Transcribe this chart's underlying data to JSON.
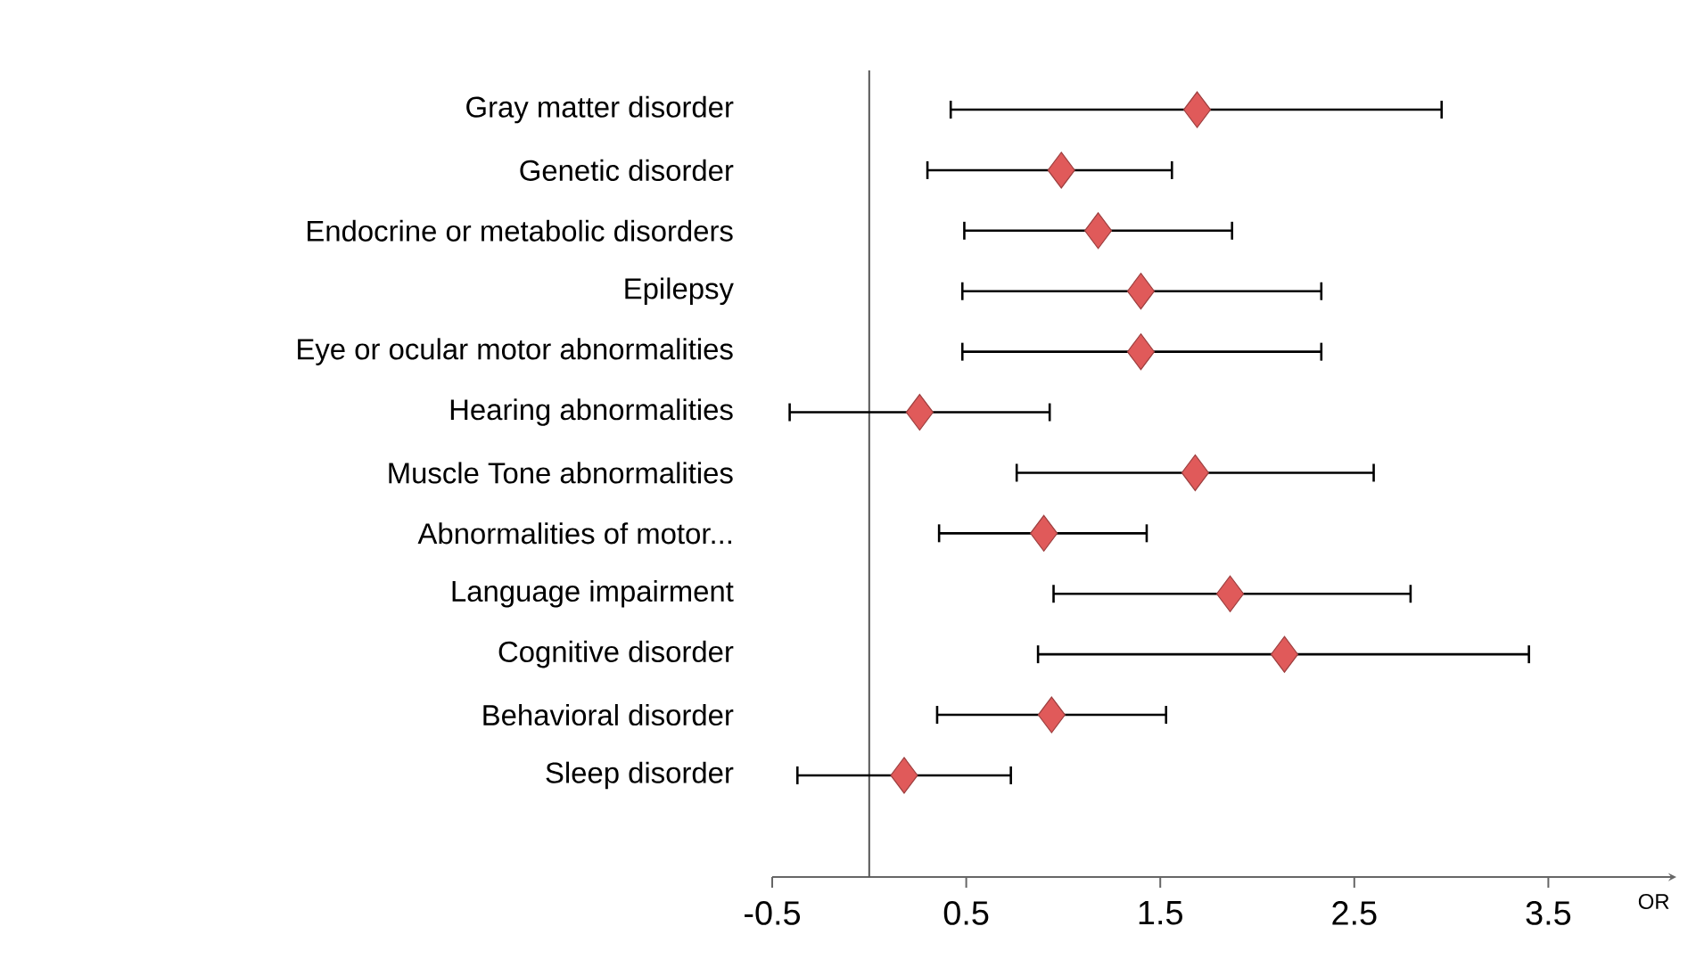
{
  "chart_data": {
    "type": "scatter",
    "orientation": "horizontal",
    "marker": "diamond",
    "color": "#e05a5a",
    "xlabel": "OR",
    "categories": [
      "Gray matter disorder",
      "Genetic disorder",
      "Endocrine or metabolic disorders",
      "Epilepsy",
      "Eye or ocular motor abnormalities",
      "Hearing abnormalities",
      "Muscle Tone abnormalities",
      "Abnormalities of motor...",
      "Language impairment",
      "Cognitive disorder",
      "Behavioral disorder",
      "Sleep disorder"
    ],
    "values": [
      1.69,
      0.99,
      1.18,
      1.4,
      1.4,
      0.26,
      1.68,
      0.9,
      1.86,
      2.14,
      0.94,
      0.18
    ],
    "errors": [
      [
        0.42,
        2.95
      ],
      [
        0.3,
        1.56
      ],
      [
        0.49,
        1.87
      ],
      [
        0.48,
        2.33
      ],
      [
        0.48,
        2.33
      ],
      [
        -0.41,
        0.93
      ],
      [
        0.76,
        2.6
      ],
      [
        0.36,
        1.43
      ],
      [
        0.95,
        2.79
      ],
      [
        0.87,
        3.4
      ],
      [
        0.35,
        1.53
      ],
      [
        -0.37,
        0.73
      ]
    ],
    "xlim": [
      -0.5,
      4.16
    ],
    "xticks": [
      -0.5,
      0.5,
      1.5,
      2.5,
      3.5
    ],
    "ref_lines": [
      {
        "axis": "x",
        "value": 0,
        "color": "#555555"
      }
    ]
  }
}
